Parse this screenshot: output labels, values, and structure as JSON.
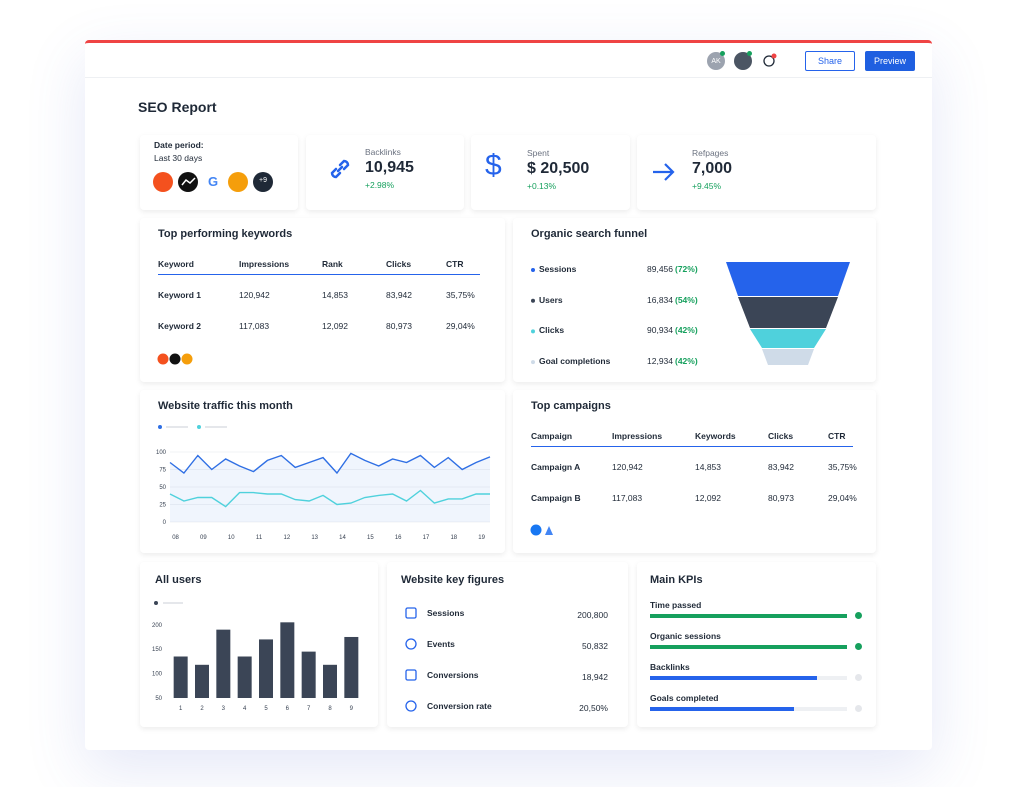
{
  "header": {
    "avatar": "AK",
    "share": "Share",
    "preview": "Preview"
  },
  "title": "SEO Report",
  "date_card": {
    "label": "Date period:",
    "value": "Last 30 days",
    "more": "+9"
  },
  "metrics": [
    {
      "label": "Backlinks",
      "value": "10,945",
      "change": "+2.98%"
    },
    {
      "label": "Spent",
      "value": "$ 20,500",
      "change": "+0.13%"
    },
    {
      "label": "Refpages",
      "value": "7,000",
      "change": "+9.45%"
    }
  ],
  "keywords": {
    "title": "Top performing keywords",
    "columns": [
      "Keyword",
      "Impressions",
      "Rank",
      "Clicks",
      "CTR"
    ],
    "rows": [
      [
        "Keyword 1",
        "120,942",
        "14,853",
        "83,942",
        "35,75%"
      ],
      [
        "Keyword 2",
        "117,083",
        "12,092",
        "80,973",
        "29,04%"
      ]
    ]
  },
  "funnel": {
    "title": "Organic search funnel",
    "stages": [
      {
        "name": "Sessions",
        "value": "89,456",
        "share": "(72%)",
        "color": "#2563eb"
      },
      {
        "name": "Users",
        "value": "16,834",
        "share": "(54%)",
        "color": "#3b4556"
      },
      {
        "name": "Clicks",
        "value": "90,934",
        "share": "(42%)",
        "color": "#4fd1dc"
      },
      {
        "name": "Goal completions",
        "value": "12,934",
        "share": "(42%)",
        "color": "#cfdbe8"
      }
    ]
  },
  "campaigns": {
    "title": "Top campaigns",
    "columns": [
      "Campaign",
      "Impressions",
      "Keywords",
      "Clicks",
      "CTR"
    ],
    "rows": [
      [
        "Campaign A",
        "120,942",
        "14,853",
        "83,942",
        "35,75%"
      ],
      [
        "Campaign B",
        "117,083",
        "12,092",
        "80,973",
        "29,04%"
      ]
    ]
  },
  "key_figures": {
    "title": "Website key figures",
    "rows": [
      {
        "label": "Sessions",
        "value": "200,800"
      },
      {
        "label": "Events",
        "value": "50,832"
      },
      {
        "label": "Conversions",
        "value": "18,942"
      },
      {
        "label": "Conversion rate",
        "value": "20,50%"
      }
    ]
  },
  "kpis": {
    "title": "Main KPIs",
    "items": [
      {
        "label": "Time passed",
        "progress": 100,
        "color": "#16a05d",
        "done": true
      },
      {
        "label": "Organic sessions",
        "progress": 100,
        "color": "#16a05d",
        "done": true
      },
      {
        "label": "Backlinks",
        "progress": 85,
        "color": "#2563eb",
        "done": false
      },
      {
        "label": "Goals completed",
        "progress": 73,
        "color": "#2563eb",
        "done": false
      }
    ]
  },
  "chart_data": [
    {
      "type": "line",
      "title": "Website traffic this month",
      "x": [
        7.8,
        8.3,
        8.8,
        9.3,
        9.8,
        10.3,
        10.8,
        11.3,
        11.8,
        12.3,
        12.8,
        13.3,
        13.8,
        14.3,
        14.8,
        15.3,
        15.8,
        16.3,
        16.8,
        17.3,
        17.8,
        18.3,
        18.8,
        19.3
      ],
      "series": [
        {
          "color": "#2f6fe4",
          "area": true,
          "values": [
            85,
            70,
            95,
            75,
            90,
            80,
            72,
            88,
            95,
            78,
            85,
            92,
            70,
            98,
            88,
            80,
            90,
            85,
            95,
            78,
            92,
            75,
            85,
            93
          ]
        },
        {
          "color": "#4fd1dc",
          "area": false,
          "values": [
            40,
            30,
            35,
            35,
            22,
            42,
            42,
            40,
            40,
            32,
            30,
            38,
            25,
            27,
            35,
            38,
            40,
            30,
            45,
            27,
            33,
            33,
            40,
            40
          ]
        }
      ],
      "xlim": [
        7.8,
        19.3
      ],
      "xticks": [
        {
          "value": 8,
          "label": "08"
        },
        {
          "value": 9,
          "label": "09"
        },
        10,
        11,
        12,
        13,
        14,
        15,
        16,
        17,
        18,
        19
      ],
      "ylim": [
        0,
        100
      ],
      "yticks": [
        0,
        25,
        50,
        75,
        100
      ],
      "grid": true
    },
    {
      "type": "bar",
      "title": "All users",
      "categories": [
        1,
        2,
        3,
        4,
        5,
        6,
        7,
        8,
        9
      ],
      "values": [
        135,
        118,
        190,
        135,
        170,
        205,
        145,
        118,
        175
      ],
      "color": "#3b4556",
      "ylim": [
        50,
        220
      ],
      "yticks": [
        50,
        100,
        150,
        200
      ],
      "grid": false
    }
  ]
}
